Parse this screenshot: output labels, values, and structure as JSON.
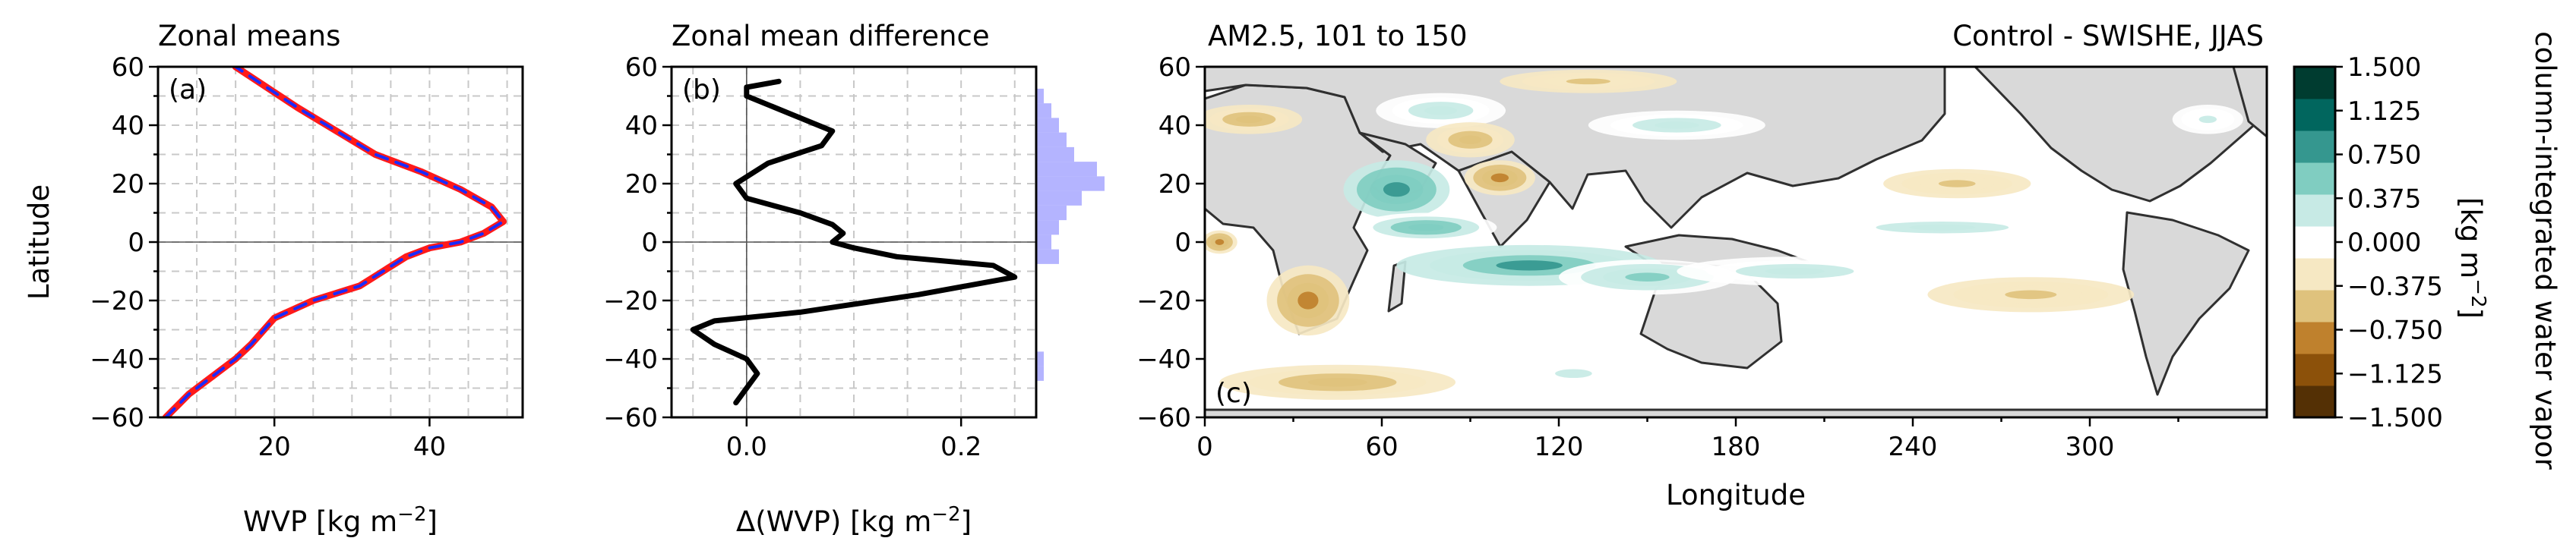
{
  "chart_data": [
    {
      "type": "line",
      "panel": "a",
      "title": "Zonal means",
      "panel_label": "(a)",
      "xlabel": "WVP [kg m",
      "xlabel_sup": "−2",
      "xlabel_tail": "]",
      "ylabel": "Latitude",
      "xlim": [
        5,
        52
      ],
      "ylim": [
        -60,
        60
      ],
      "xticks": [
        20,
        40
      ],
      "yticks": [
        -60,
        -40,
        -20,
        0,
        20,
        40,
        60
      ],
      "grid": true,
      "series": [
        {
          "color": "#ff1a1a",
          "style": "solid",
          "x": [
            6,
            9,
            12,
            15,
            17,
            20,
            25,
            31,
            34,
            37,
            40,
            44,
            47,
            49.5,
            48,
            44,
            39,
            33,
            28,
            23,
            19,
            15
          ],
          "y": [
            -60,
            -52,
            -46,
            -40,
            -35,
            -26,
            -20,
            -15,
            -10,
            -5,
            -2,
            0,
            3,
            7,
            12,
            18,
            24,
            30,
            38,
            46,
            53,
            60
          ]
        },
        {
          "color": "#1a2cff",
          "style": "dashed",
          "x": [
            6,
            9,
            12,
            15,
            17,
            20,
            25,
            31,
            34,
            37,
            40,
            44,
            47,
            49.5,
            48,
            44,
            39,
            33,
            28,
            23,
            19,
            15
          ],
          "y": [
            -60,
            -52,
            -46,
            -40,
            -35,
            -26,
            -20,
            -15,
            -10,
            -5,
            -2,
            0,
            3,
            7,
            12,
            18,
            24,
            30,
            38,
            46,
            53,
            60
          ]
        }
      ]
    },
    {
      "type": "line",
      "panel": "b",
      "title": "Zonal mean difference",
      "panel_label": "(b)",
      "xlabel": "Δ(WVP) [kg m",
      "xlabel_sup": "−2",
      "xlabel_tail": "]",
      "ylabel": "",
      "xlim": [
        -0.07,
        0.27
      ],
      "ylim": [
        -60,
        60
      ],
      "xticks": [
        0.0,
        0.2
      ],
      "yticks": [
        -60,
        -40,
        -20,
        0,
        20,
        40,
        60
      ],
      "grid": true,
      "series": [
        {
          "color": "#000000",
          "style": "solid",
          "x": [
            -0.01,
            0.0,
            0.01,
            0.0,
            -0.03,
            -0.05,
            -0.03,
            0.05,
            0.16,
            0.25,
            0.23,
            0.14,
            0.1,
            0.08,
            0.09,
            0.08,
            0.05,
            0.0,
            -0.01,
            0.02,
            0.07,
            0.08,
            0.04,
            0.0,
            0.0,
            0.03
          ],
          "y": [
            -55,
            -50,
            -45,
            -40,
            -35,
            -30,
            -27,
            -24,
            -18,
            -12,
            -8,
            -5,
            -2,
            0,
            3,
            6,
            10,
            15,
            20,
            27,
            33,
            38,
            44,
            50,
            53,
            55
          ]
        }
      ],
      "histogram": {
        "color": "#8c8cff",
        "overlap_color": "#7aa6a6",
        "bins_lat": [
          -45,
          -40,
          -5,
          0,
          5,
          10,
          15,
          20,
          25,
          30,
          35,
          40,
          45,
          50
        ],
        "counts": [
          1,
          1,
          3,
          2,
          3,
          4,
          6,
          9,
          8,
          5,
          4,
          3,
          2,
          1
        ]
      }
    },
    {
      "type": "heatmap",
      "panel": "c",
      "title_left": "AM2.5, 101 to 150",
      "title_right": "Control - SWISHE, JJAS",
      "panel_label": "(c)",
      "xlabel": "Longitude",
      "ylabel": "",
      "xlim": [
        0,
        360
      ],
      "ylim": [
        -60,
        60
      ],
      "xticks": [
        0,
        60,
        120,
        180,
        240,
        300
      ],
      "yticks": [
        -60,
        -40,
        -20,
        0,
        20,
        40,
        60
      ],
      "colorbar": {
        "label": "column-integrated water vapor",
        "units_label": "[kg m",
        "units_sup": "−2",
        "units_tail": "]",
        "ticks": [
          "1.500",
          "1.125",
          "0.750",
          "0.375",
          "0.000",
          "−0.375",
          "−0.750",
          "−1.125",
          "−1.500"
        ],
        "levels": [
          -1.5,
          -1.125,
          -0.75,
          -0.375,
          0.0,
          0.375,
          0.75,
          1.125,
          1.5
        ],
        "colors": [
          "#543005",
          "#8c510a",
          "#bf812d",
          "#dfc27d",
          "#f6e8c3",
          "#ffffff",
          "#c7eae5",
          "#80cdc1",
          "#35978f",
          "#01665e",
          "#003c30"
        ]
      },
      "blobs": [
        {
          "lon": 65,
          "lat": 18,
          "rlon": 18,
          "rlat": 10,
          "v": 1.4
        },
        {
          "lon": 75,
          "lat": 5,
          "rlon": 24,
          "rlat": 5,
          "v": 1.0
        },
        {
          "lon": 110,
          "lat": -8,
          "rlon": 45,
          "rlat": 7,
          "v": 1.2
        },
        {
          "lon": 150,
          "lat": -12,
          "rlon": 30,
          "rlat": 6,
          "v": 0.9
        },
        {
          "lon": 200,
          "lat": -10,
          "rlon": 40,
          "rlat": 5,
          "v": 0.6
        },
        {
          "lon": 250,
          "lat": 5,
          "rlon": 45,
          "rlat": 4,
          "v": 0.5
        },
        {
          "lon": 160,
          "lat": 40,
          "rlon": 30,
          "rlat": 5,
          "v": 0.5
        },
        {
          "lon": 80,
          "lat": 45,
          "rlon": 22,
          "rlat": 6,
          "v": 0.5
        },
        {
          "lon": 340,
          "lat": 42,
          "rlon": 12,
          "rlat": 5,
          "v": 0.4
        },
        {
          "lon": 125,
          "lat": -45,
          "rlon": 25,
          "rlat": 6,
          "v": 0.4
        },
        {
          "lon": 100,
          "lat": 22,
          "rlon": 12,
          "rlat": 6,
          "v": -0.8
        },
        {
          "lon": 90,
          "lat": 35,
          "rlon": 15,
          "rlat": 6,
          "v": -0.6
        },
        {
          "lon": 35,
          "lat": -20,
          "rlon": 14,
          "rlat": 12,
          "v": -0.9
        },
        {
          "lon": 15,
          "lat": 42,
          "rlon": 18,
          "rlat": 5,
          "v": -0.5
        },
        {
          "lon": 45,
          "lat": -48,
          "rlon": 40,
          "rlat": 6,
          "v": -0.6
        },
        {
          "lon": 280,
          "lat": -18,
          "rlon": 35,
          "rlat": 6,
          "v": -0.4
        },
        {
          "lon": 255,
          "lat": 20,
          "rlon": 25,
          "rlat": 5,
          "v": -0.4
        },
        {
          "lon": 130,
          "lat": 55,
          "rlon": 30,
          "rlat": 4,
          "v": -0.4
        },
        {
          "lon": 5,
          "lat": 0,
          "rlon": 6,
          "rlat": 4,
          "v": -0.9
        }
      ]
    }
  ]
}
